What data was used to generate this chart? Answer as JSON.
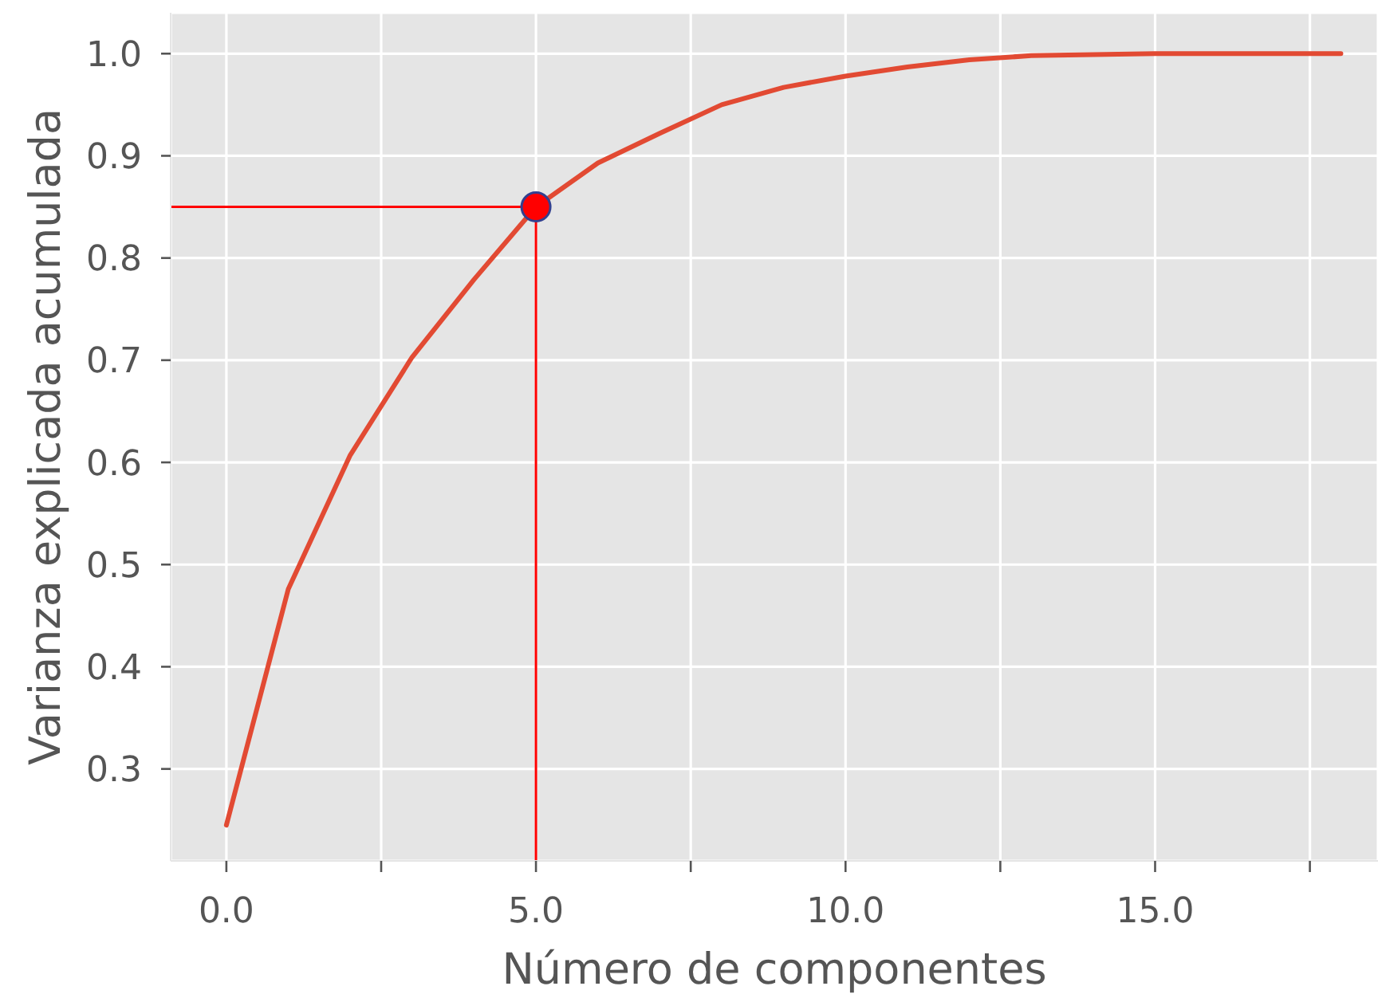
{
  "chart_data": {
    "type": "line",
    "xlabel": "Número de componentes",
    "ylabel": "Varianza explicada acumulada",
    "x": [
      0,
      1,
      2,
      3,
      4,
      5,
      6,
      7,
      8,
      9,
      10,
      11,
      12,
      13,
      14,
      15,
      16,
      17,
      18
    ],
    "series": [
      {
        "color": "#e24a33",
        "values": [
          0.245,
          0.476,
          0.607,
          0.703,
          0.779,
          0.85,
          0.893,
          0.922,
          0.95,
          0.967,
          0.978,
          0.987,
          0.994,
          0.998,
          0.999,
          1.0,
          1.0,
          1.0,
          1.0
        ]
      },
      {
        "type": "scatter",
        "color": "#ff0000",
        "marker": "circle",
        "values": [
          null,
          null,
          null,
          null,
          null,
          0.85,
          null,
          null,
          null,
          null,
          null,
          null,
          null,
          null,
          null,
          null,
          null,
          null,
          null
        ]
      }
    ],
    "ref_lines": [
      {
        "axis": "y",
        "value": 0.85,
        "color": "#ff0000"
      },
      {
        "axis": "x",
        "value": 5,
        "color": "#ff0000"
      }
    ],
    "xlim": [
      -0.9,
      18.6
    ],
    "xticks": [
      {
        "value": 0,
        "label": "0.0"
      },
      {
        "value": 2.5,
        "label": null
      },
      {
        "value": 5,
        "label": "5.0"
      },
      {
        "value": 7.5,
        "label": null
      },
      {
        "value": 10,
        "label": "10.0"
      },
      {
        "value": 12.5,
        "label": null
      },
      {
        "value": 15,
        "label": "15.0"
      },
      {
        "value": 17.5,
        "label": null
      }
    ],
    "ylim": [
      0.21,
      1.04
    ],
    "yticks": [
      0.3,
      0.4,
      0.5,
      0.6,
      0.7,
      0.8,
      0.9,
      {
        "value": 1,
        "label": "1.0"
      }
    ],
    "grid": true,
    "marker": "none",
    "line_style": "solid"
  }
}
